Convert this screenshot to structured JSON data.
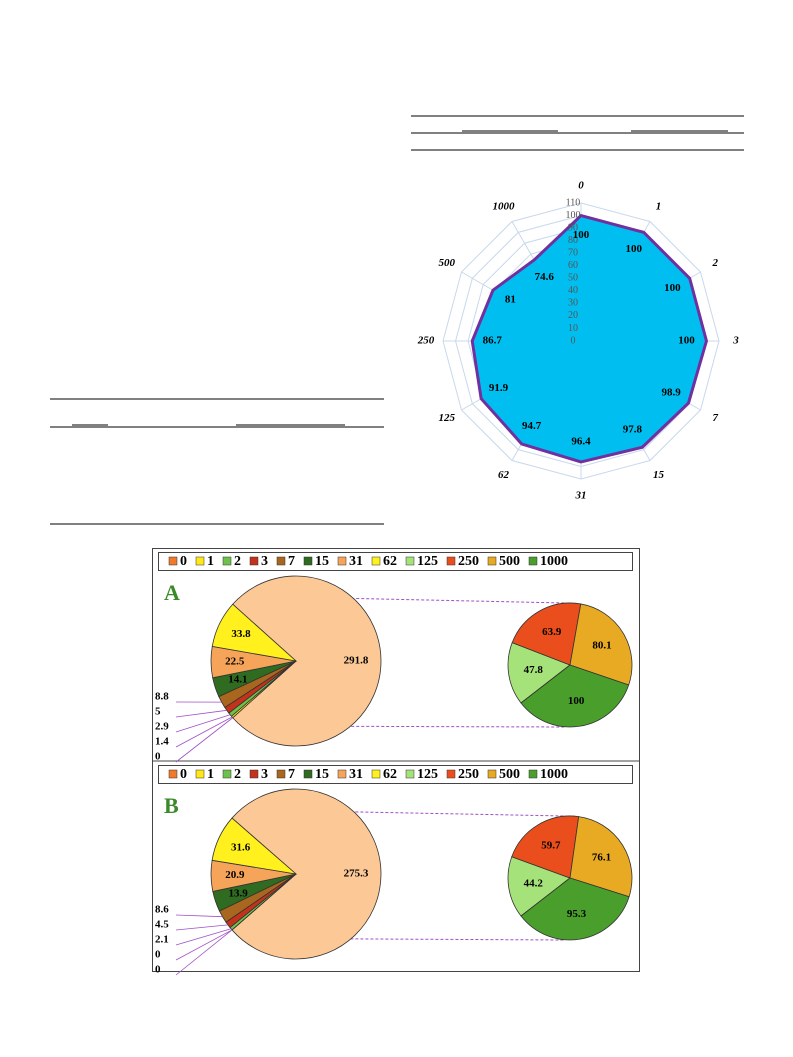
{
  "chart_data": [
    {
      "type": "radar",
      "categories": [
        "0",
        "1",
        "2",
        "3",
        "7",
        "15",
        "31",
        "62",
        "125",
        "250",
        "500",
        "1000"
      ],
      "values": [
        100,
        100,
        100,
        100,
        98.9,
        97.8,
        96.4,
        94.7,
        91.9,
        86.7,
        81,
        74.6
      ],
      "rlim": [
        0,
        110
      ],
      "rticks": [
        0,
        10,
        20,
        30,
        40,
        50,
        60,
        70,
        80,
        90,
        100,
        110
      ],
      "fill": "#00bff0",
      "line_color": "#7030a0",
      "grid_color": "#c8d8ec"
    },
    {
      "type": "pie_of_pie",
      "panel_label": "A",
      "categories": [
        "0",
        "1",
        "2",
        "3",
        "7",
        "15",
        "31",
        "62",
        "125",
        "250",
        "500",
        "1000"
      ],
      "colors": [
        "#f07a2a",
        "#ffe81a",
        "#6cc24a",
        "#c4321c",
        "#a8661e",
        "#2f6b20",
        "#f5a45a",
        "#fff01e",
        "#a6e27a",
        "#ea4e1c",
        "#e8aa22",
        "#4a9e2c"
      ],
      "main_values": [
        0,
        1.4,
        2.9,
        5,
        8.8,
        14.1,
        22.5,
        33.8
      ],
      "other_value": 291.8,
      "other_color": "#fbc896",
      "second_values": [
        47.8,
        63.9,
        80.1,
        100
      ]
    },
    {
      "type": "pie_of_pie",
      "panel_label": "B",
      "categories": [
        "0",
        "1",
        "2",
        "3",
        "7",
        "15",
        "31",
        "62",
        "125",
        "250",
        "500",
        "1000"
      ],
      "colors": [
        "#f07a2a",
        "#ffe81a",
        "#6cc24a",
        "#c4321c",
        "#a8661e",
        "#2f6b20",
        "#f5a45a",
        "#fff01e",
        "#a6e27a",
        "#ea4e1c",
        "#e8aa22",
        "#4a9e2c"
      ],
      "main_values": [
        0,
        0,
        2.1,
        4.5,
        8.6,
        13.9,
        20.9,
        31.6
      ],
      "other_value": 275.3,
      "other_color": "#fbc896",
      "second_values": [
        44.2,
        59.7,
        76.1,
        95.3
      ]
    }
  ]
}
